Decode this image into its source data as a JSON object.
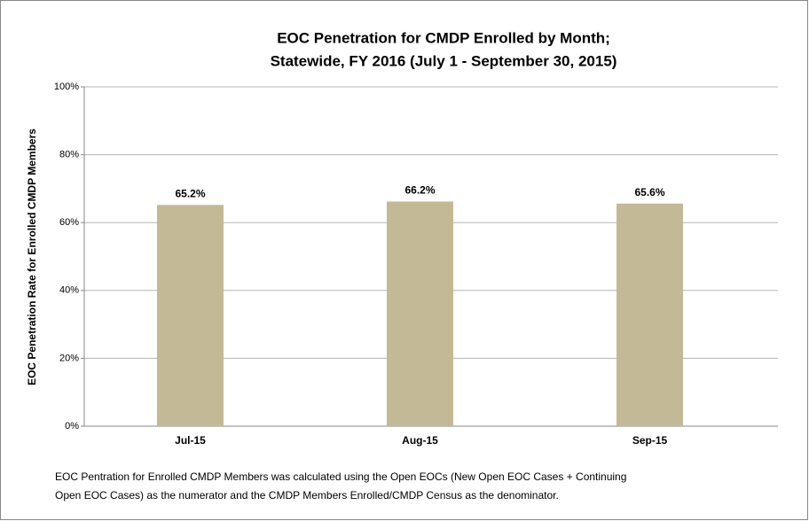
{
  "chart_data": {
    "type": "bar",
    "title": [
      "EOC Penetration for CMDP Enrolled by Month;",
      "Statewide, FY 2016 (July 1 - September 30, 2015)"
    ],
    "y_label": "EOC Penetration Rate for Enrolled CMDP Members",
    "categories": [
      "Jul-15",
      "Aug-15",
      "Sep-15"
    ],
    "values": [
      65.2,
      66.2,
      65.6
    ],
    "value_labels": [
      "65.2%",
      "66.2%",
      "65.6%"
    ],
    "color": "#c4b996",
    "ylim": [
      0,
      100
    ],
    "yticks": [
      {
        "value": 0,
        "label": "0%"
      },
      {
        "value": 20,
        "label": "20%"
      },
      {
        "value": 40,
        "label": "40%"
      },
      {
        "value": 60,
        "label": "60%"
      },
      {
        "value": 80,
        "label": "80%"
      },
      {
        "value": 100,
        "label": "100%"
      }
    ],
    "grid": true,
    "note": [
      "EOC Pentration for Enrolled CMDP Members was calculated using the Open EOCs (New Open EOC Cases + Continuing",
      "Open EOC Cases) as the numerator and the CMDP Members Enrolled/CMDP Census as the denominator."
    ]
  }
}
